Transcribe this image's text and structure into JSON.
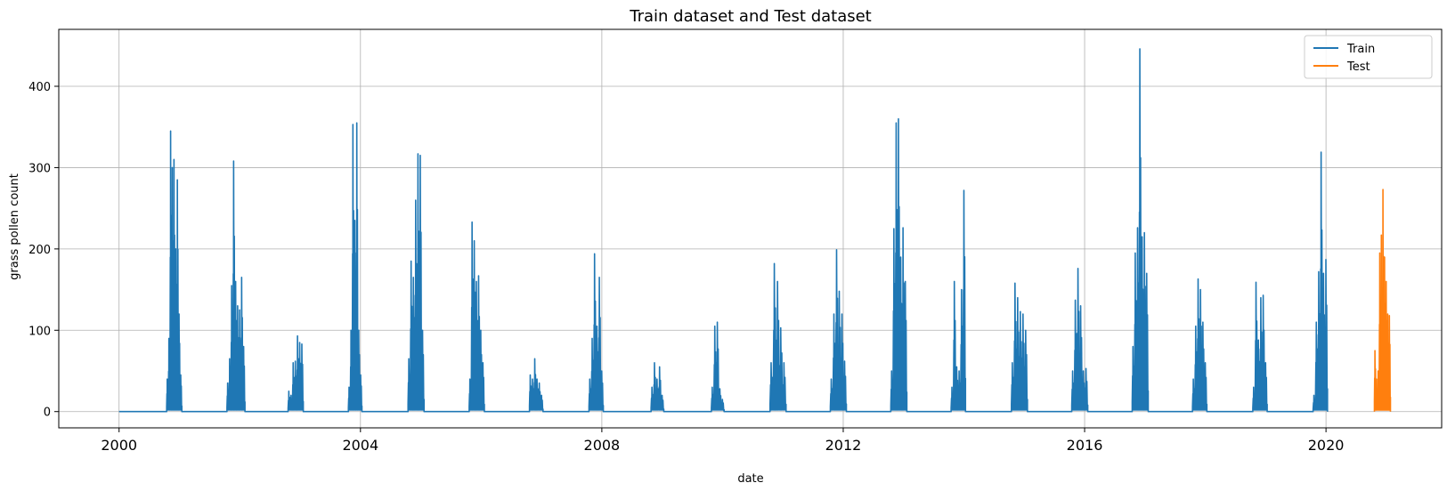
{
  "chart_data": {
    "type": "line",
    "title": "Train dataset and Test dataset",
    "xlabel": "date",
    "ylabel": "grass pollen count",
    "x_type": "date",
    "xlim": [
      "1999-01-01",
      "2021-12-01"
    ],
    "ylim": [
      -20,
      470
    ],
    "x_ticks": [
      "2000",
      "2004",
      "2008",
      "2012",
      "2016",
      "2020"
    ],
    "y_ticks": [
      0,
      100,
      200,
      300,
      400
    ],
    "grid": true,
    "legend": {
      "position": "top-right",
      "entries": [
        "Train",
        "Test"
      ]
    },
    "series": [
      {
        "name": "Train",
        "color": "#1f77b4",
        "seasons": [
          {
            "start": "2000-10-15",
            "end": "2001-01-15",
            "peaks": [
              40,
              90,
              345,
              300,
              310,
              200,
              285,
              120,
              45
            ]
          },
          {
            "start": "2001-10-15",
            "end": "2002-02-01",
            "peaks": [
              35,
              65,
              155,
              308,
              160,
              130,
              125,
              165,
              80
            ]
          },
          {
            "start": "2002-10-20",
            "end": "2003-01-20",
            "peaks": [
              25,
              20,
              60,
              62,
              93,
              85,
              83
            ]
          },
          {
            "start": "2003-10-20",
            "end": "2004-01-10",
            "peaks": [
              30,
              100,
              353,
              235,
              355,
              100,
              45
            ]
          },
          {
            "start": "2004-10-15",
            "end": "2005-01-20",
            "peaks": [
              65,
              185,
              165,
              260,
              317,
              315,
              100
            ]
          },
          {
            "start": "2005-10-20",
            "end": "2006-01-20",
            "peaks": [
              40,
              233,
              210,
              160,
              167,
              100,
              60
            ]
          },
          {
            "start": "2006-10-20",
            "end": "2007-01-10",
            "peaks": [
              45,
              40,
              65,
              40,
              35,
              20
            ]
          },
          {
            "start": "2007-10-15",
            "end": "2008-01-10",
            "peaks": [
              40,
              90,
              194,
              105,
              165,
              50
            ]
          },
          {
            "start": "2008-10-25",
            "end": "2009-01-10",
            "peaks": [
              30,
              60,
              40,
              55,
              20
            ]
          },
          {
            "start": "2009-10-25",
            "end": "2010-01-10",
            "peaks": [
              30,
              105,
              110,
              28,
              15
            ]
          },
          {
            "start": "2010-10-15",
            "end": "2011-01-20",
            "peaks": [
              60,
              182,
              160,
              103,
              60
            ]
          },
          {
            "start": "2011-10-15",
            "end": "2012-01-20",
            "peaks": [
              40,
              120,
              199,
              148,
              120,
              62
            ]
          },
          {
            "start": "2012-10-15",
            "end": "2013-01-20",
            "peaks": [
              50,
              225,
              355,
              360,
              190,
              226,
              160
            ]
          },
          {
            "start": "2013-10-15",
            "end": "2014-01-10",
            "peaks": [
              30,
              160,
              55,
              50,
              150,
              272
            ]
          },
          {
            "start": "2014-10-15",
            "end": "2015-01-20",
            "peaks": [
              60,
              158,
              140,
              123,
              120,
              100
            ]
          },
          {
            "start": "2015-10-15",
            "end": "2016-01-20",
            "peaks": [
              50,
              137,
              176,
              130,
              50,
              53
            ]
          },
          {
            "start": "2016-10-15",
            "end": "2017-01-20",
            "peaks": [
              80,
              195,
              226,
              446,
              215,
              220,
              170
            ]
          },
          {
            "start": "2017-10-15",
            "end": "2018-01-10",
            "peaks": [
              40,
              105,
              163,
              150,
              110,
              60
            ]
          },
          {
            "start": "2018-10-15",
            "end": "2019-01-10",
            "peaks": [
              30,
              159,
              88,
              140,
              143,
              60
            ]
          },
          {
            "start": "2019-10-15",
            "end": "2020-01-10",
            "peaks": [
              20,
              110,
              172,
              319,
              170,
              187
            ]
          }
        ]
      },
      {
        "name": "Test",
        "color": "#ff7f0e",
        "seasons": [
          {
            "start": "2020-10-20",
            "end": "2021-01-25",
            "peaks": [
              75,
              40,
              50,
              195,
              217,
              273,
              190,
              160,
              120,
              118
            ]
          }
        ]
      }
    ]
  }
}
